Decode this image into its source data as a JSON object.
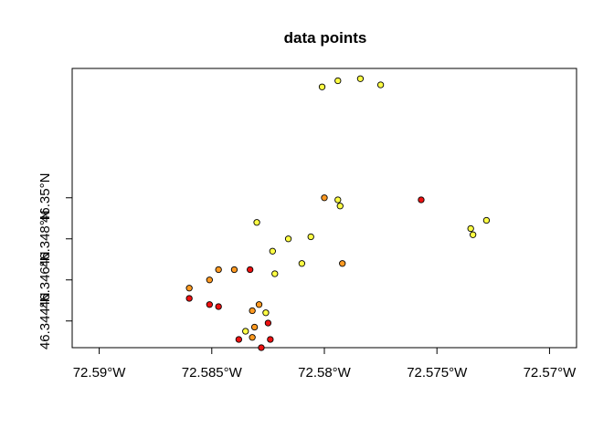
{
  "chart_data": {
    "type": "scatter",
    "title": "data points",
    "xlabel": "",
    "ylabel": "",
    "xlim": [
      -72.5912,
      -72.5688
    ],
    "ylim": [
      46.3427,
      46.3563
    ],
    "x_ticks": [
      {
        "value": -72.59,
        "label": "72.59°W"
      },
      {
        "value": -72.585,
        "label": "72.585°W"
      },
      {
        "value": -72.58,
        "label": "72.58°W"
      },
      {
        "value": -72.575,
        "label": "72.575°W"
      },
      {
        "value": -72.57,
        "label": "72.57°W"
      }
    ],
    "y_ticks": [
      {
        "value": 46.344,
        "label": "46.344°N"
      },
      {
        "value": 46.346,
        "label": "46.346°N"
      },
      {
        "value": 46.348,
        "label": "46.348°N"
      },
      {
        "value": 46.35,
        "label": "46.35°N"
      }
    ],
    "grid": false,
    "colors": {
      "yellow": "#ffff44",
      "orange": "#ff9a22",
      "red": "#ee1111"
    },
    "points": [
      {
        "x": -72.5801,
        "y": 46.3554,
        "color": "yellow"
      },
      {
        "x": -72.5794,
        "y": 46.3557,
        "color": "yellow"
      },
      {
        "x": -72.5784,
        "y": 46.3558,
        "color": "yellow"
      },
      {
        "x": -72.5775,
        "y": 46.3555,
        "color": "yellow"
      },
      {
        "x": -72.5794,
        "y": 46.3499,
        "color": "yellow"
      },
      {
        "x": -72.5793,
        "y": 46.3496,
        "color": "yellow"
      },
      {
        "x": -72.58,
        "y": 46.35,
        "color": "orange"
      },
      {
        "x": -72.5757,
        "y": 46.3499,
        "color": "red"
      },
      {
        "x": -72.583,
        "y": 46.3488,
        "color": "yellow"
      },
      {
        "x": -72.5735,
        "y": 46.3485,
        "color": "yellow"
      },
      {
        "x": -72.5734,
        "y": 46.3482,
        "color": "yellow"
      },
      {
        "x": -72.5728,
        "y": 46.3489,
        "color": "yellow"
      },
      {
        "x": -72.5816,
        "y": 46.348,
        "color": "yellow"
      },
      {
        "x": -72.5806,
        "y": 46.3481,
        "color": "yellow"
      },
      {
        "x": -72.5823,
        "y": 46.3474,
        "color": "yellow"
      },
      {
        "x": -72.581,
        "y": 46.3468,
        "color": "yellow"
      },
      {
        "x": -72.5792,
        "y": 46.3468,
        "color": "orange"
      },
      {
        "x": -72.5847,
        "y": 46.3465,
        "color": "orange"
      },
      {
        "x": -72.584,
        "y": 46.3465,
        "color": "orange"
      },
      {
        "x": -72.5833,
        "y": 46.3465,
        "color": "red"
      },
      {
        "x": -72.5822,
        "y": 46.3463,
        "color": "yellow"
      },
      {
        "x": -72.5851,
        "y": 46.346,
        "color": "orange"
      },
      {
        "x": -72.586,
        "y": 46.3456,
        "color": "orange"
      },
      {
        "x": -72.586,
        "y": 46.3451,
        "color": "red"
      },
      {
        "x": -72.5851,
        "y": 46.3448,
        "color": "red"
      },
      {
        "x": -72.5847,
        "y": 46.3447,
        "color": "red"
      },
      {
        "x": -72.5829,
        "y": 46.3448,
        "color": "orange"
      },
      {
        "x": -72.5832,
        "y": 46.3445,
        "color": "orange"
      },
      {
        "x": -72.5826,
        "y": 46.3444,
        "color": "yellow"
      },
      {
        "x": -72.5825,
        "y": 46.3439,
        "color": "red"
      },
      {
        "x": -72.5831,
        "y": 46.3437,
        "color": "orange"
      },
      {
        "x": -72.5835,
        "y": 46.3435,
        "color": "yellow"
      },
      {
        "x": -72.5838,
        "y": 46.3431,
        "color": "red"
      },
      {
        "x": -72.5832,
        "y": 46.3432,
        "color": "orange"
      },
      {
        "x": -72.5824,
        "y": 46.3431,
        "color": "red"
      },
      {
        "x": -72.5828,
        "y": 46.3427,
        "color": "red"
      }
    ]
  }
}
